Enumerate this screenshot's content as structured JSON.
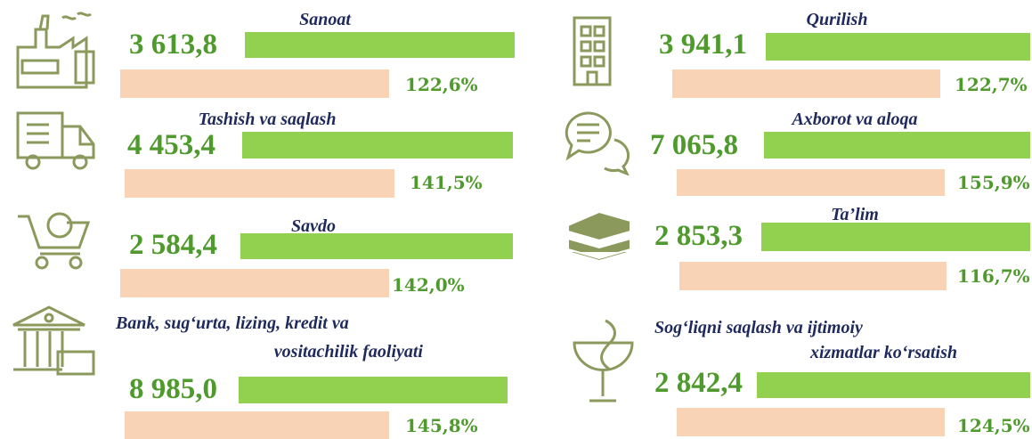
{
  "items": [
    {
      "title": [
        "Sanoat"
      ],
      "value": "3 613,8",
      "percent": "122,6%"
    },
    {
      "title": [
        "Tashish va saqlash"
      ],
      "value": "4 453,4",
      "percent": "141,5%"
    },
    {
      "title": [
        "Savdo"
      ],
      "value": "2 584,4",
      "percent": "142,0%"
    },
    {
      "title": [
        "Bank, sug‘urta, lizing, kredit va",
        "vositachilik faoliyati"
      ],
      "value": "8 985,0",
      "percent": "145,8%"
    },
    {
      "title": [
        "Qurilish"
      ],
      "value": "3 941,1",
      "percent": "122,7%"
    },
    {
      "title": [
        "Axborot va aloqa"
      ],
      "value": "7 065,8",
      "percent": "155,9%"
    },
    {
      "title": [
        "Ta’lim"
      ],
      "value": "2 853,3",
      "percent": "116,7%"
    },
    {
      "title": [
        "Sog‘liqni saqlash va ijtimoiy",
        "xizmatlar ko‘rsatish"
      ],
      "value": "2 842,4",
      "percent": "124,5%"
    }
  ]
}
